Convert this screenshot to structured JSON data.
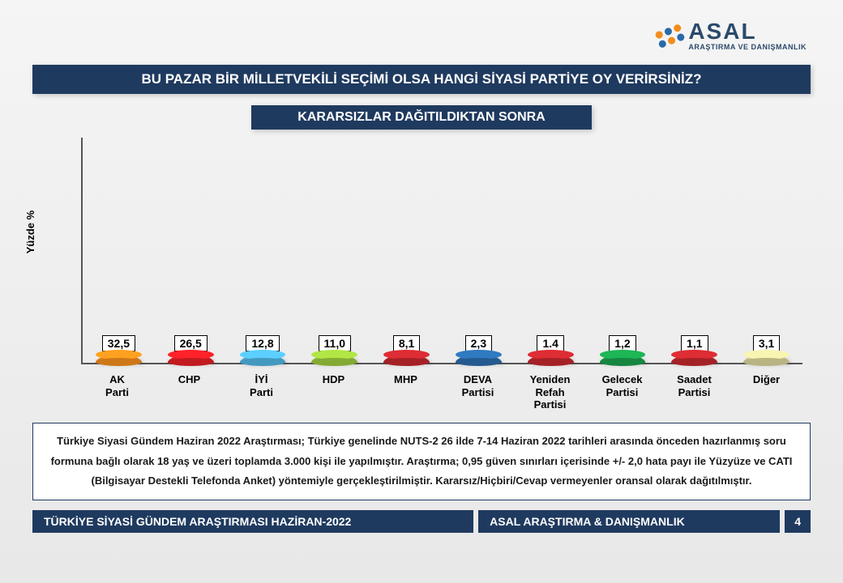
{
  "logo": {
    "name": "ASAL",
    "tagline": "ARAŞTIRMA VE DANIŞMANLIK",
    "colors": [
      "#f28c1c",
      "#2a6aa8"
    ]
  },
  "title": "BU PAZAR BİR MİLLETVEKİLİ SEÇİMİ OLSA HANGİ SİYASİ PARTİYE OY VERİRSİNİZ?",
  "subtitle": "KARARSIZLAR DAĞITILDIKTAN SONRA",
  "chart": {
    "type": "bar",
    "y_label": "Yüzde %",
    "y_max": 35,
    "title_bg": "#1f3a5f",
    "title_color": "#ffffff",
    "categories": [
      "AK Parti",
      "CHP",
      "İYİ Parti",
      "HDP",
      "MHP",
      "DEVA Partisi",
      "Yeniden Refah Partisi",
      "Gelecek Partisi",
      "Saadet Partisi",
      "Diğer"
    ],
    "values": [
      32.5,
      26.5,
      12.8,
      11.0,
      8.1,
      2.3,
      1.4,
      1.2,
      1.1,
      3.1
    ],
    "value_labels": [
      "32,5",
      "26,5",
      "12,8",
      "11,0",
      "8,1",
      "2,3",
      "1.4",
      "1,2",
      "1,1",
      "3,1"
    ],
    "bar_colors": [
      "#f28c1c",
      "#e31e24",
      "#4fb4e0",
      "#9ac83c",
      "#c1272d",
      "#2a6aa8",
      "#c1272d",
      "#1a9e4b",
      "#c1272d",
      "#d8d49a"
    ],
    "label_box_border": "#000000",
    "axis_color": "#555555",
    "background": "transparent",
    "bar_width": 0.64
  },
  "methodology": "Türkiye Siyasi Gündem Haziran 2022 Araştırması; Türkiye genelinde NUTS-2 26 ilde 7-14 Haziran 2022 tarihleri arasında önceden hazırlanmış soru formuna bağlı olarak 18 yaş ve üzeri toplamda 3.000 kişi ile yapılmıştır. Araştırma; 0,95 güven sınırları içerisinde +/- 2,0 hata payı ile Yüzyüze ve CATI (Bilgisayar Destekli Telefonda Anket) yöntemiyle gerçekleştirilmiştir. Kararsız/Hiçbiri/Cevap vermeyenler oransal olarak dağıtılmıştır.",
  "footer": {
    "left": "TÜRKİYE SİYASİ GÜNDEM ARAŞTIRMASI  HAZİRAN-2022",
    "right": "ASAL ARAŞTIRMA & DANIŞMANLIK",
    "page": "4",
    "bg_color": "#1f3a5f"
  }
}
